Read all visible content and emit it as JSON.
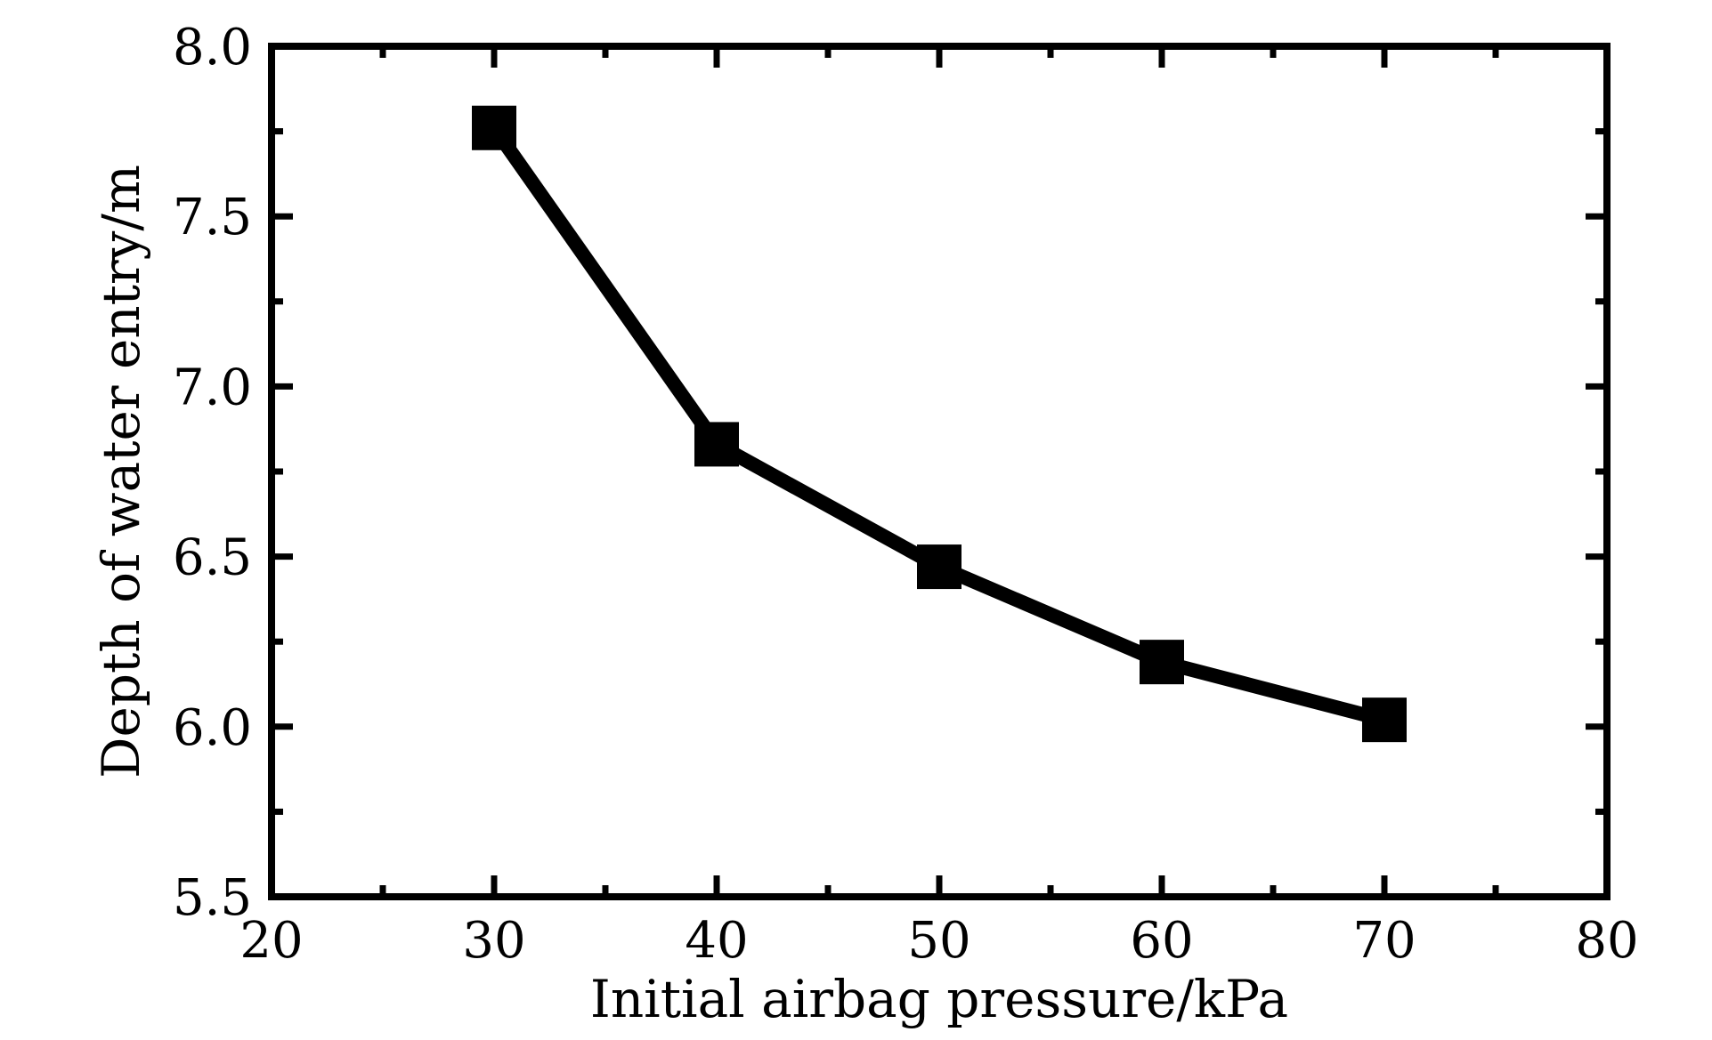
{
  "chart_data": {
    "type": "line",
    "title": "",
    "xlabel": "Initial airbag pressure/kPa",
    "ylabel": "Depth of water entry/m",
    "xlim": [
      20,
      80
    ],
    "ylim": [
      5.5,
      8.0
    ],
    "x_ticks": [
      20,
      30,
      40,
      50,
      60,
      70,
      80
    ],
    "y_ticks": [
      "5.5",
      "6.0",
      "6.5",
      "7.0",
      "7.5",
      "8.0"
    ],
    "x_minor_step": 5,
    "y_minor_step": 0.25,
    "grid": false,
    "legend": "none",
    "marker": "square",
    "color": "#000000",
    "series": [
      {
        "x": [
          30,
          40,
          50,
          60,
          70
        ],
        "y": [
          7.76,
          6.83,
          6.47,
          6.19,
          6.02
        ]
      }
    ]
  }
}
